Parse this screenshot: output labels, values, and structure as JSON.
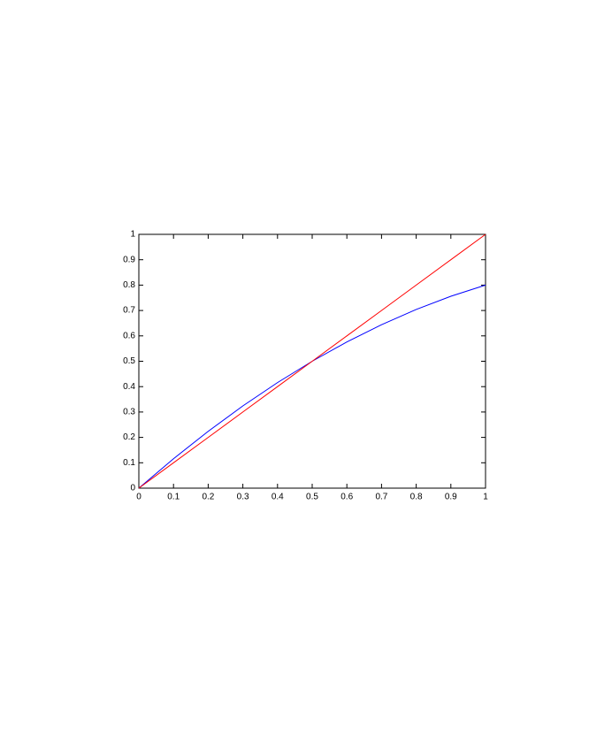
{
  "chart_data": {
    "type": "line",
    "x": [
      0,
      0.1,
      0.2,
      0.3,
      0.4,
      0.5,
      0.6,
      0.7,
      0.8,
      0.9,
      1
    ],
    "series": [
      {
        "color": "#0000ff",
        "values": [
          0,
          0.116,
          0.224,
          0.324,
          0.416,
          0.5,
          0.576,
          0.644,
          0.704,
          0.756,
          0.8
        ]
      },
      {
        "color": "#ff0000",
        "values": [
          0,
          0.1,
          0.2,
          0.3,
          0.4,
          0.5,
          0.6,
          0.7,
          0.8,
          0.9,
          1
        ]
      }
    ],
    "xlim": [
      0,
      1
    ],
    "xticks": [
      0,
      0.1,
      0.2,
      0.3,
      0.4,
      0.5,
      0.6,
      0.7,
      0.8,
      0.9,
      1
    ],
    "ylim": [
      0,
      1
    ],
    "yticks": [
      0,
      0.1,
      0.2,
      0.3,
      0.4,
      0.5,
      0.6,
      0.7,
      0.8,
      0.9,
      1
    ]
  }
}
